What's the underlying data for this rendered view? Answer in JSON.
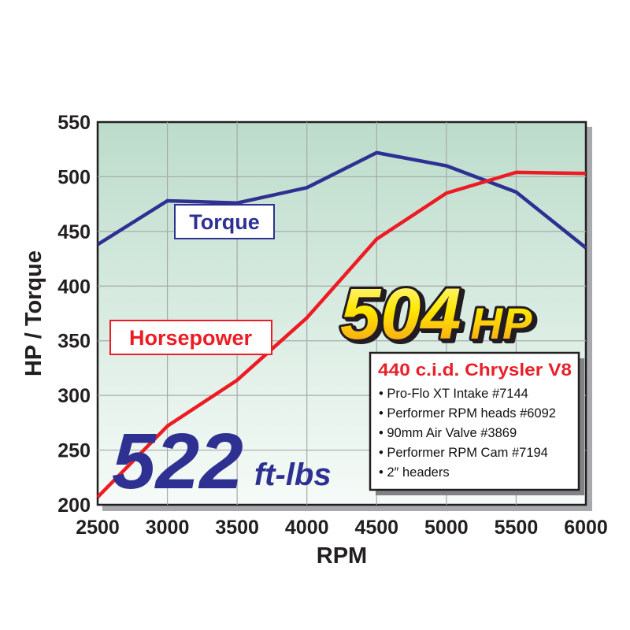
{
  "chart_data": {
    "type": "line",
    "xlabel": "RPM",
    "ylabel": "HP / Torque",
    "xlim": [
      2500,
      6000
    ],
    "ylim": [
      200,
      550
    ],
    "x": [
      2500,
      3000,
      3500,
      4000,
      4500,
      5000,
      5500,
      6000
    ],
    "x_ticks": [
      "2500",
      "3000",
      "3500",
      "4000",
      "4500",
      "5000",
      "5500",
      "6000"
    ],
    "y_ticks": [
      "550",
      "500",
      "450",
      "400",
      "350",
      "300",
      "250",
      "200"
    ],
    "grid": true,
    "series": [
      {
        "name": "Torque",
        "color": "#2e3192",
        "values": [
          438,
          478,
          476,
          490,
          522,
          510,
          486,
          435
        ]
      },
      {
        "name": "Horsepower",
        "color": "#ed1c24",
        "values": [
          207,
          272,
          314,
          371,
          443,
          485,
          504,
          503
        ]
      }
    ],
    "annotations": {
      "peak_hp_value": "504",
      "peak_hp_unit": "HP",
      "peak_torque_value": "522",
      "peak_torque_unit": "ft-lbs"
    },
    "spec_box": {
      "title": "440 c.i.d. Chrysler V8",
      "items": [
        "• Pro-Flo XT Intake #7144",
        "• Performer RPM heads #6092",
        "• 90mm Air Valve #3869",
        "• Performer RPM Cam #7194",
        "• 2″ headers"
      ]
    },
    "colors": {
      "plot_bg_top": "#bcdccb",
      "plot_bg_bottom": "#f6fbf8",
      "grid": "#a7a9ac"
    }
  }
}
